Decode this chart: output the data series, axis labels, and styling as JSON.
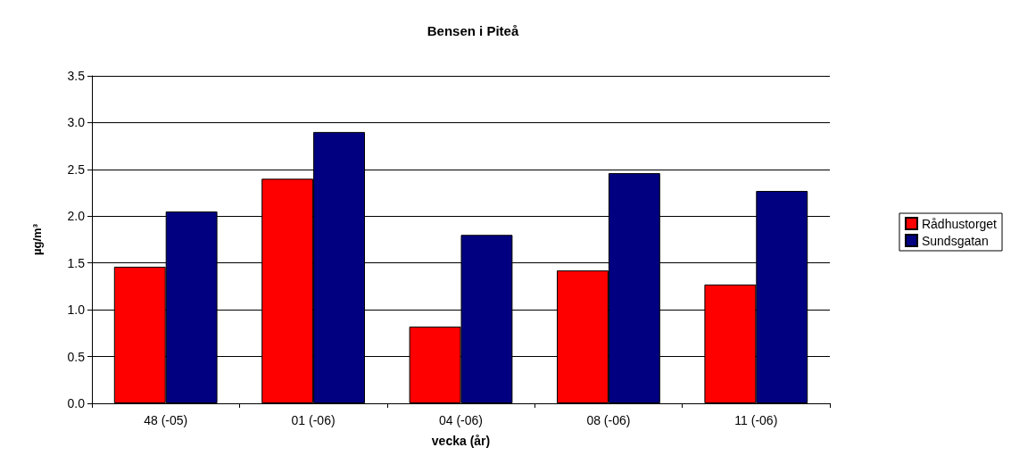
{
  "chart_data": {
    "type": "bar",
    "title": "Bensen i Piteå",
    "xlabel": "vecka (år)",
    "ylabel": "µg/m³",
    "categories": [
      "48 (-05)",
      "01 (-06)",
      "04 (-06)",
      "08 (-06)",
      "11 (-06)"
    ],
    "series": [
      {
        "name": "Rådhustorget",
        "color": "#ff0000",
        "values": [
          1.46,
          2.4,
          0.82,
          1.42,
          1.27
        ]
      },
      {
        "name": "Sundsgatan",
        "color": "#000080",
        "values": [
          2.05,
          2.9,
          1.8,
          2.46,
          2.27
        ]
      }
    ],
    "ylim": [
      0,
      3.5
    ],
    "yticks": [
      {
        "value": 0,
        "label": "0.0"
      },
      {
        "value": 0.5,
        "label": "0.5"
      },
      {
        "value": 1,
        "label": "1.0"
      },
      {
        "value": 1.5,
        "label": "1.5"
      },
      {
        "value": 2,
        "label": "2.0"
      },
      {
        "value": 2.5,
        "label": "2.5"
      },
      {
        "value": 3,
        "label": "3.0"
      },
      {
        "value": 3.5,
        "label": "3.5"
      }
    ],
    "grid": "y",
    "legend": "right"
  }
}
